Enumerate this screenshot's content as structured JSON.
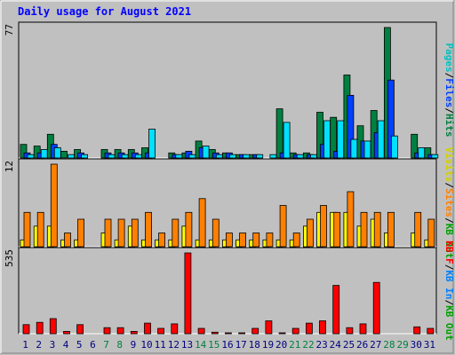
{
  "chart_data": {
    "type": "bar",
    "title": "Daily usage for August 2021",
    "categories": [
      "1",
      "2",
      "3",
      "4",
      "5",
      "6",
      "7",
      "8",
      "9",
      "10",
      "11",
      "12",
      "13",
      "14",
      "15",
      "16",
      "17",
      "18",
      "19",
      "20",
      "21",
      "22",
      "23",
      "24",
      "25",
      "26",
      "27",
      "28",
      "29",
      "30",
      "31"
    ],
    "weekend_days": [
      "7",
      "8",
      "14",
      "15",
      "21",
      "22",
      "28",
      "29"
    ],
    "panels": [
      {
        "id": "hits",
        "max_label": "77",
        "ylim": [
          0,
          77
        ],
        "legend": [
          "Pages",
          "Files",
          "Hits"
        ],
        "series": [
          {
            "name": "Hits",
            "color": "#008040",
            "values": [
              8,
              7,
              14,
              4,
              5,
              0,
              5,
              5,
              5,
              6,
              0,
              3,
              3,
              10,
              5,
              3,
              2,
              2,
              0,
              29,
              3,
              3,
              27,
              24,
              49,
              19,
              28,
              77,
              0,
              14,
              6
            ]
          },
          {
            "name": "Files",
            "color": "#0040ff",
            "values": [
              3,
              3,
              8,
              0,
              3,
              0,
              3,
              3,
              3,
              3,
              0,
              2,
              4,
              6,
              3,
              3,
              2,
              2,
              0,
              3,
              2,
              2,
              8,
              4,
              37,
              10,
              15,
              46,
              0,
              3,
              2
            ]
          },
          {
            "name": "Pages",
            "color": "#00e0ff",
            "values": [
              2,
              5,
              6,
              2,
              2,
              0,
              2,
              2,
              2,
              17,
              0,
              2,
              2,
              7,
              2,
              2,
              2,
              2,
              2,
              21,
              2,
              2,
              22,
              22,
              11,
              10,
              22,
              13,
              0,
              6,
              2
            ]
          }
        ]
      },
      {
        "id": "visits",
        "max_label": "12",
        "ylim": [
          0,
          12
        ],
        "legend": [
          "Visits",
          "Sites",
          "KB Out"
        ],
        "series": [
          {
            "name": "Visits",
            "color": "#ffff00",
            "values": [
              1,
              3,
              3,
              1,
              1,
              0,
              2,
              1,
              3,
              1,
              1,
              1,
              3,
              1,
              1,
              1,
              1,
              1,
              1,
              1,
              1,
              3,
              5,
              5,
              5,
              3,
              4,
              2,
              0,
              2,
              1
            ]
          },
          {
            "name": "Sites",
            "color": "#ff8000",
            "values": [
              5,
              5,
              12,
              2,
              4,
              0,
              4,
              4,
              4,
              5,
              2,
              4,
              5,
              7,
              4,
              2,
              2,
              2,
              2,
              6,
              2,
              4,
              6,
              5,
              8,
              5,
              5,
              5,
              0,
              5,
              4
            ]
          }
        ]
      },
      {
        "id": "kbytes",
        "max_label": "535",
        "ylim": [
          0,
          535
        ],
        "legend": [
          "KB F",
          "KB In",
          "KB Out"
        ],
        "series": [
          {
            "name": "KB F",
            "color": "#ff0000",
            "values": [
              60,
              75,
              100,
              15,
              60,
              0,
              40,
              40,
              15,
              70,
              35,
              65,
              535,
              35,
              10,
              5,
              5,
              35,
              85,
              5,
              35,
              70,
              85,
              320,
              40,
              65,
              340,
              0,
              0,
              45,
              35
            ]
          }
        ]
      }
    ],
    "legend_colors": {
      "Pages": "#00c0c0",
      "Files": "#0040ff",
      "Hits": "#008040",
      "Visits": "#d0d000",
      "Sites": "#ff8000",
      "KB F": "#ff0000",
      "KB In": "#0080ff",
      "KB Out": "#00a000"
    },
    "legend_separator": "/",
    "colors": {
      "background": "#c0c0c0",
      "frame": "#ffffff",
      "title": "#0000ff",
      "axis_label": "#000000",
      "day_label": "#000080",
      "weekend_label": "#008040"
    }
  }
}
